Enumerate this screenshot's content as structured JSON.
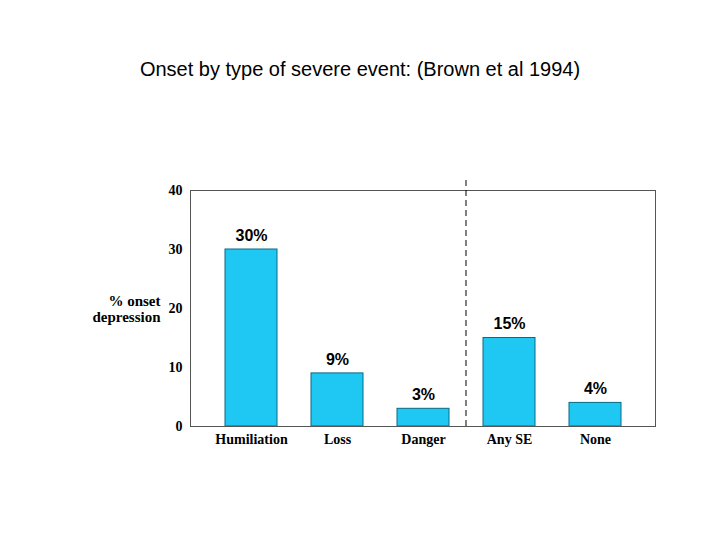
{
  "chart_data": {
    "type": "bar",
    "title": "Onset by type of severe event: (Brown et al 1994)",
    "y_label": "% onset\ndepression",
    "categories": [
      "Humiliation",
      "Loss",
      "Danger",
      "Any SE",
      "None"
    ],
    "values": [
      30,
      9,
      3,
      15,
      4
    ],
    "value_labels": [
      "30%",
      "9%",
      "3%",
      "15%",
      "4%"
    ],
    "data_labels": true,
    "color": "#1ec8f2",
    "ylim": [
      0,
      40
    ],
    "yticks": [
      0,
      10,
      20,
      30,
      40
    ],
    "grid": false
  }
}
